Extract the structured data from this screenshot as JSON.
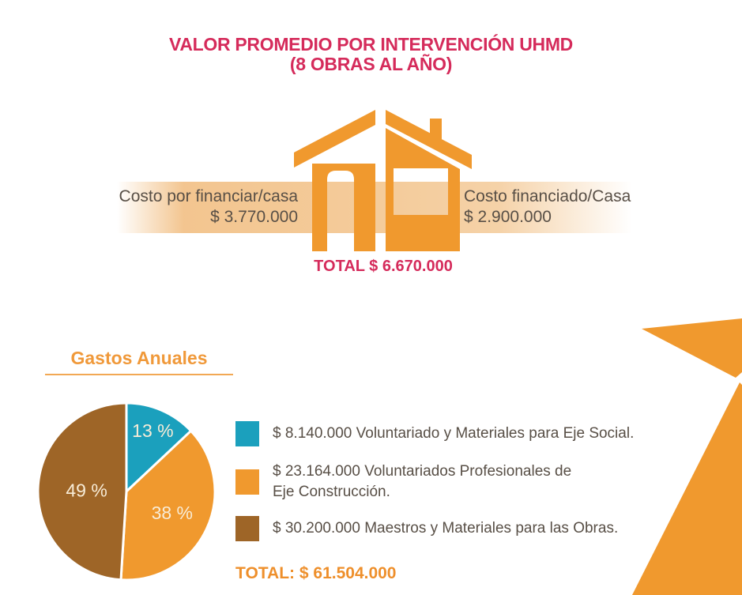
{
  "title": {
    "line1": "VALOR PROMEDIO POR INTERVENCIÓN UHMD",
    "line2": "(8 OBRAS AL AÑO)"
  },
  "house": {
    "left_label": {
      "line1": "Costo por financiar/casa",
      "line2": "$ 3.770.000"
    },
    "right_label": {
      "line1": "Costo financiado/Casa",
      "line2": "$ 2.900.000"
    },
    "total": "TOTAL $ 6.670.000"
  },
  "gastos": {
    "heading": "Gastos Anuales",
    "legend": [
      {
        "line1": "$ 8.140.000 Voluntariado y Materiales para Eje Social.",
        "line2": ""
      },
      {
        "line1": "$ 23.164.000 Voluntariados Profesionales de",
        "line2": "Eje Construcción."
      },
      {
        "line1": "$ 30.200.000 Maestros y Materiales para las Obras.",
        "line2": ""
      }
    ],
    "total": "TOTAL: $ 61.504.000"
  },
  "chart_data": {
    "type": "pie",
    "title": "Gastos Anuales",
    "values": [
      13,
      38,
      49
    ],
    "slice_labels": [
      "13 %",
      "38 %",
      "49 %"
    ],
    "colors": [
      "#1ba0bd",
      "#f0992e",
      "#9e6527"
    ],
    "amounts": [
      "$ 8.140.000",
      "$ 23.164.000",
      "$ 30.200.000"
    ],
    "series_names": [
      "Voluntariado y Materiales para Eje Social",
      "Voluntariados Profesionales de Eje Construcción",
      "Maestros y Materiales para las Obras"
    ],
    "total": "$ 61.504.000",
    "start_angle_deg": -90,
    "direction": "clockwise",
    "separator_color": "#ffffff",
    "label_radius_frac": [
      0.75,
      0.57,
      0.45
    ],
    "legend_position": "right"
  },
  "colors": {
    "accent_pink": "#d52b5b",
    "orange": "#f0992e",
    "teal": "#1ba0bd",
    "brown": "#9e6527",
    "band_peach": "#f3c894",
    "text_dark": "#584f46",
    "total_orange": "#ee8f2b"
  }
}
